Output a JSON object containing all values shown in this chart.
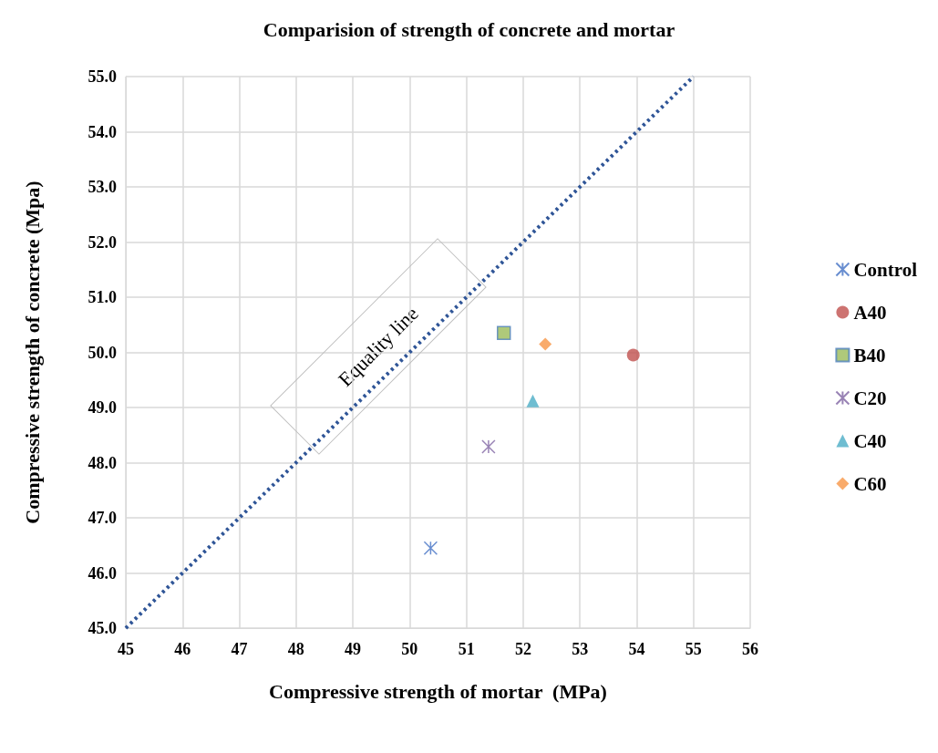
{
  "chart_data": {
    "type": "scatter",
    "title": "Comparision of strength of concrete and mortar",
    "xlabel": "Compressive strength of mortar  (MPa)",
    "ylabel": "Compressive strength of concrete (Mpa)",
    "annotations": [
      "Equality line"
    ],
    "xlim": [
      45,
      56
    ],
    "xticks": [
      45,
      46,
      47,
      48,
      49,
      50,
      51,
      52,
      53,
      54,
      55,
      56
    ],
    "ylim": [
      45,
      55
    ],
    "yticks": [
      {
        "value": 45,
        "label": "45.0"
      },
      {
        "value": 46,
        "label": "46.0"
      },
      {
        "value": 47,
        "label": "47.0"
      },
      {
        "value": 48,
        "label": "48.0"
      },
      {
        "value": 49,
        "label": "49.0"
      },
      {
        "value": 50,
        "label": "50.0"
      },
      {
        "value": 51,
        "label": "51.0"
      },
      {
        "value": 52,
        "label": "52.0"
      },
      {
        "value": 53,
        "label": "53.0"
      },
      {
        "value": 54,
        "label": "54.0"
      },
      {
        "value": 55,
        "label": "55.0"
      }
    ],
    "grid": true,
    "legend": "right",
    "series": [
      {
        "type": "line",
        "color": "#2f5597",
        "line_style": "dotted",
        "marker": "none",
        "x": [
          45,
          55
        ],
        "values": [
          45,
          55
        ]
      },
      {
        "name": "Control",
        "color": "#4472c4",
        "marker": "cross",
        "x": [
          50.37
        ],
        "values": [
          46.45
        ]
      },
      {
        "name": "A40",
        "color": "#c0504d",
        "marker": "circle",
        "x": [
          53.94
        ],
        "values": [
          49.95
        ]
      },
      {
        "name": "B40",
        "color": "#9bbb59",
        "marker": "square",
        "x": [
          51.66
        ],
        "values": [
          50.35
        ]
      },
      {
        "name": "C20",
        "color": "#8064a2",
        "marker": "cross",
        "x": [
          51.39
        ],
        "values": [
          48.29
        ]
      },
      {
        "name": "C40",
        "color": "#4bacc6",
        "marker": "triangle",
        "x": [
          52.17
        ],
        "values": [
          49.12
        ]
      },
      {
        "name": "C60",
        "color": "#f79646",
        "marker": "diamond",
        "x": [
          52.39
        ],
        "values": [
          50.15
        ]
      }
    ]
  }
}
